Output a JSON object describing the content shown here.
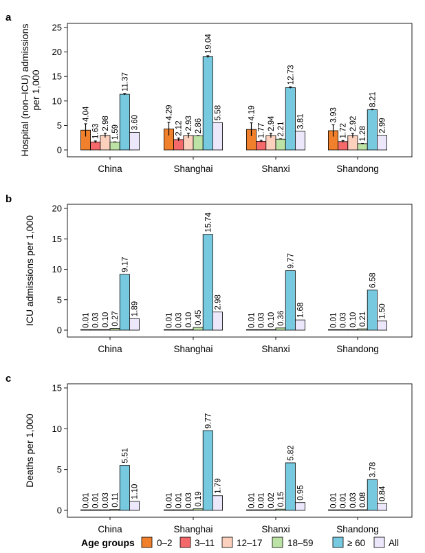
{
  "age_groups": [
    "0–2",
    "3–11",
    "12–17",
    "18–59",
    "≥ 60",
    "All"
  ],
  "colors": [
    "#f0802c",
    "#f5696b",
    "#fbd0bc",
    "#bde2a6",
    "#76c9de",
    "#ece7fb"
  ],
  "legend": {
    "title": "Age groups",
    "labels": [
      "0–2",
      "3–11",
      "12–17",
      "18–59",
      "≥ 60",
      "All"
    ]
  },
  "chart_data": [
    {
      "type": "bar",
      "panel_label": "a",
      "ylabel_lines": [
        "Hospital (non–ICU) admissions",
        "per 1,000"
      ],
      "categories": [
        "China",
        "Shanghai",
        "Shanxi",
        "Shandong"
      ],
      "ylim": [
        0,
        25
      ],
      "yticks": [
        0,
        5,
        10,
        15,
        20,
        25
      ],
      "series": [
        {
          "name": "0–2",
          "values": [
            4.04,
            4.29,
            4.19,
            3.93
          ],
          "labels": [
            "4.04",
            "4.29",
            "4.19",
            "3.93"
          ],
          "err": [
            1.3,
            1.35,
            1.35,
            1.2
          ]
        },
        {
          "name": "3–11",
          "values": [
            1.63,
            2.12,
            1.77,
            1.72
          ],
          "labels": [
            "1.63",
            "2.12",
            "1.77",
            "1.72"
          ],
          "err": [
            0.2,
            0.3,
            0.2,
            0.2
          ]
        },
        {
          "name": "12–17",
          "values": [
            2.98,
            2.93,
            2.94,
            2.92
          ],
          "labels": [
            "2.98",
            "2.93",
            "2.94",
            "2.92"
          ],
          "err": [
            0.45,
            0.5,
            0.45,
            0.45
          ]
        },
        {
          "name": "18–59",
          "values": [
            1.59,
            2.86,
            2.21,
            1.28
          ],
          "labels": [
            "1.59",
            "2.86",
            "2.21",
            "1.28"
          ],
          "err": [
            0.05,
            0.05,
            0.05,
            0.05
          ]
        },
        {
          "name": "≥ 60",
          "values": [
            11.37,
            19.04,
            12.73,
            8.21
          ],
          "labels": [
            "11.37",
            "19.04",
            "12.73",
            "8.21"
          ],
          "err": [
            0.15,
            0.2,
            0.15,
            0.1
          ]
        },
        {
          "name": "All",
          "values": [
            3.6,
            5.58,
            3.81,
            2.99
          ],
          "labels": [
            "3.60",
            "5.58",
            "3.81",
            "2.99"
          ],
          "err": [
            0,
            0,
            0,
            0
          ]
        }
      ]
    },
    {
      "type": "bar",
      "panel_label": "b",
      "ylabel_lines": [
        "ICU admissions per 1,000"
      ],
      "categories": [
        "China",
        "Shanghai",
        "Shanxi",
        "Shandong"
      ],
      "ylim": [
        0,
        20
      ],
      "yticks": [
        0,
        5,
        10,
        15,
        20
      ],
      "series": [
        {
          "name": "0–2",
          "values": [
            0.01,
            0.01,
            0.01,
            0.01
          ],
          "labels": [
            "0.01",
            "0.01",
            "0.01",
            "0.01"
          ]
        },
        {
          "name": "3–11",
          "values": [
            0.03,
            0.03,
            0.03,
            0.03
          ],
          "labels": [
            "0.03",
            "0.03",
            "0.03",
            "0.03"
          ]
        },
        {
          "name": "12–17",
          "values": [
            0.1,
            0.1,
            0.1,
            0.1
          ],
          "labels": [
            "0.10",
            "0.10",
            "0.10",
            "0.10"
          ]
        },
        {
          "name": "18–59",
          "values": [
            0.27,
            0.45,
            0.36,
            0.21
          ],
          "labels": [
            "0.27",
            "0.45",
            "0.36",
            "0.21"
          ]
        },
        {
          "name": "≥ 60",
          "values": [
            9.17,
            15.74,
            9.77,
            6.58
          ],
          "labels": [
            "9.17",
            "15.74",
            "9.77",
            "6.58"
          ]
        },
        {
          "name": "All",
          "values": [
            1.89,
            2.98,
            1.68,
            1.5
          ],
          "labels": [
            "1.89",
            "2.98",
            "1.68",
            "1.50"
          ]
        }
      ]
    },
    {
      "type": "bar",
      "panel_label": "c",
      "ylabel_lines": [
        "Deaths per 1,000"
      ],
      "categories": [
        "China",
        "Shanghai",
        "Shanxi",
        "Shandong"
      ],
      "ylim": [
        0,
        15
      ],
      "yticks": [
        0,
        5,
        10,
        15
      ],
      "series": [
        {
          "name": "0–2",
          "values": [
            0.01,
            0.01,
            0.01,
            0.01
          ],
          "labels": [
            "0.01",
            "0.01",
            "0.01",
            "0.01"
          ]
        },
        {
          "name": "3–11",
          "values": [
            0.01,
            0.01,
            0.01,
            0.01
          ],
          "labels": [
            "0.01",
            "0.01",
            "0.01",
            "0.01"
          ]
        },
        {
          "name": "12–17",
          "values": [
            0.03,
            0.03,
            0.02,
            0.03
          ],
          "labels": [
            "0.03",
            "0.03",
            "0.02",
            "0.03"
          ]
        },
        {
          "name": "18–59",
          "values": [
            0.11,
            0.19,
            0.15,
            0.08
          ],
          "labels": [
            "0.11",
            "0.19",
            "0.15",
            "0.08"
          ]
        },
        {
          "name": "≥ 60",
          "values": [
            5.51,
            9.77,
            5.82,
            3.78
          ],
          "labels": [
            "5.51",
            "9.77",
            "5.82",
            "3.78"
          ]
        },
        {
          "name": "All",
          "values": [
            1.1,
            1.79,
            0.95,
            0.84
          ],
          "labels": [
            "1.10",
            "1.79",
            "0.95",
            "0.84"
          ]
        }
      ]
    }
  ]
}
